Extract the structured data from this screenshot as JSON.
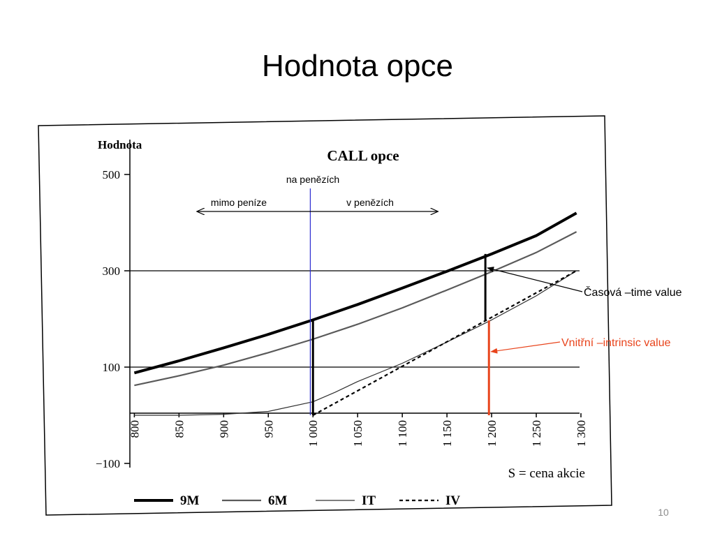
{
  "slide": {
    "title": "Hodnota opce",
    "page_number": "10"
  },
  "chart_data": {
    "type": "line",
    "title": "CALL opce",
    "ylabel": "Hodnota",
    "xlabel": "S = cena akcie",
    "xlim": [
      795,
      1300
    ],
    "ylim": [
      -100,
      500
    ],
    "yticks": [
      {
        "value": 500,
        "label": "500"
      },
      {
        "value": 300,
        "label": "300"
      },
      {
        "value": 100,
        "label": "100"
      },
      {
        "value": -100,
        "label": "−100"
      }
    ],
    "xticks": [
      {
        "value": 800,
        "label": "800"
      },
      {
        "value": 850,
        "label": "850"
      },
      {
        "value": 900,
        "label": "900"
      },
      {
        "value": 950,
        "label": "950"
      },
      {
        "value": 1000,
        "label": "1 000"
      },
      {
        "value": 1050,
        "label": "1 050"
      },
      {
        "value": 1100,
        "label": "1 100"
      },
      {
        "value": 1150,
        "label": "1 150"
      },
      {
        "value": 1200,
        "label": "1 200"
      },
      {
        "value": 1250,
        "label": "1 250"
      },
      {
        "value": 1300,
        "label": "1 300"
      }
    ],
    "gridlines_y": [
      300,
      100
    ],
    "legend_position": "bottom",
    "series": [
      {
        "name": "9M",
        "color": "#000000",
        "style": "thick",
        "x": [
          800,
          850,
          900,
          950,
          1000,
          1050,
          1100,
          1150,
          1200,
          1250,
          1295
        ],
        "y": [
          88,
          113,
          140,
          168,
          198,
          230,
          264,
          299,
          335,
          373,
          420
        ]
      },
      {
        "name": "6M",
        "color": "#5a5a5a",
        "style": "medium",
        "x": [
          800,
          850,
          900,
          950,
          1000,
          1050,
          1100,
          1150,
          1200,
          1250,
          1295
        ],
        "y": [
          62,
          82,
          104,
          130,
          158,
          189,
          223,
          260,
          298,
          338,
          381
        ]
      },
      {
        "name": "IT",
        "color": "#303030",
        "style": "thin",
        "x": [
          800,
          850,
          900,
          950,
          1000,
          1025,
          1050,
          1100,
          1150,
          1200,
          1250,
          1295
        ],
        "y": [
          0,
          0,
          2,
          8,
          28,
          48,
          70,
          108,
          152,
          198,
          248,
          300
        ]
      },
      {
        "name": "IV",
        "color": "#000000",
        "style": "dashed",
        "x": [
          1000,
          1295
        ],
        "y": [
          0,
          300
        ]
      }
    ],
    "annotations": {
      "atm_label": "na penězích",
      "otm_label": "mimo peníze",
      "itm_label": "v penězích",
      "atm_x": 997,
      "arrow_left_x": 870,
      "arrow_right_x": 1140,
      "atm_marker": {
        "x": 1000,
        "low": 0,
        "high": 198
      },
      "time_value_marker": {
        "x": 1193,
        "low": 197,
        "high": 335
      },
      "intrinsic_marker": {
        "x": 1197,
        "low": 0,
        "high": 197
      },
      "time_value_label": "Časová –time value",
      "intrinsic_label": "Vnitřní –intrinsic value",
      "intrinsic_color": "#e8441c",
      "atm_line_color": "#2b2bd0"
    }
  }
}
